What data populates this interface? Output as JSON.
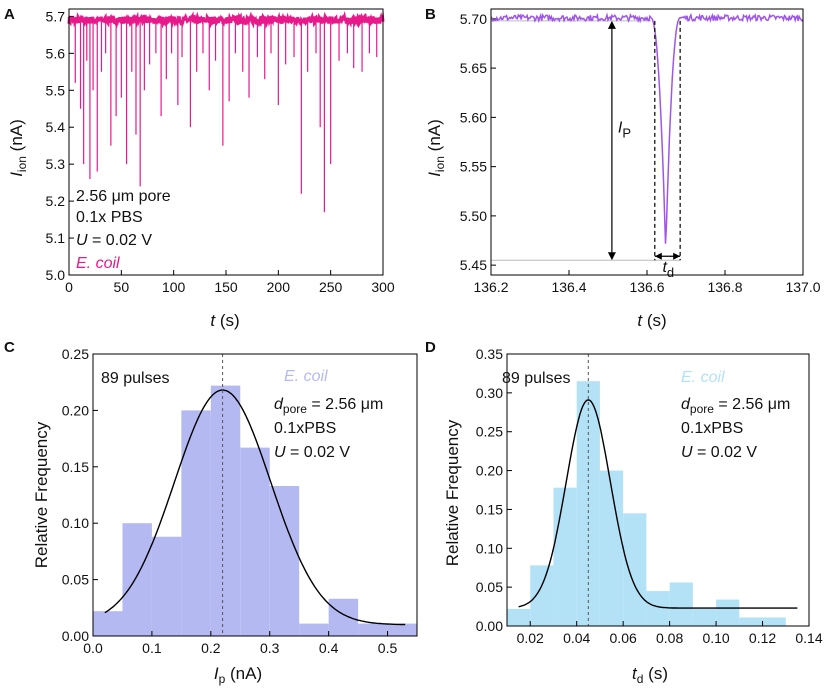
{
  "chart_data": [
    {
      "panel": "A",
      "type": "line",
      "title": "",
      "xlabel": "t (s)",
      "ylabel": "I_ion (nA)",
      "xlim": [
        0,
        300
      ],
      "ylim": [
        5.0,
        5.72
      ],
      "xticks": [
        0,
        50,
        100,
        150,
        200,
        250,
        300
      ],
      "yticks": [
        5.0,
        5.1,
        5.2,
        5.3,
        5.4,
        5.5,
        5.6,
        5.7
      ],
      "xtick_labels": [
        "0",
        "50",
        "100",
        "150",
        "200",
        "250",
        "300"
      ],
      "ytick_labels": [
        "5.0",
        "5.1",
        "5.2",
        "5.3",
        "5.4",
        "5.5",
        "5.6",
        "5.7"
      ],
      "baseline": 5.69,
      "color": "#e8198b",
      "spikes": [
        {
          "t": 6,
          "min": 5.52
        },
        {
          "t": 11,
          "min": 5.45
        },
        {
          "t": 14,
          "min": 5.3
        },
        {
          "t": 17,
          "min": 5.58
        },
        {
          "t": 20,
          "min": 5.26
        },
        {
          "t": 23,
          "min": 5.5
        },
        {
          "t": 27,
          "min": 5.28
        },
        {
          "t": 31,
          "min": 5.55
        },
        {
          "t": 35,
          "min": 5.6
        },
        {
          "t": 40,
          "min": 5.35
        },
        {
          "t": 45,
          "min": 5.43
        },
        {
          "t": 50,
          "min": 5.48
        },
        {
          "t": 55,
          "min": 5.3
        },
        {
          "t": 60,
          "min": 5.55
        },
        {
          "t": 64,
          "min": 5.38
        },
        {
          "t": 68,
          "min": 5.24
        },
        {
          "t": 72,
          "min": 5.5
        },
        {
          "t": 77,
          "min": 5.57
        },
        {
          "t": 83,
          "min": 5.6
        },
        {
          "t": 88,
          "min": 5.43
        },
        {
          "t": 93,
          "min": 5.53
        },
        {
          "t": 98,
          "min": 5.6
        },
        {
          "t": 104,
          "min": 5.46
        },
        {
          "t": 108,
          "min": 5.59
        },
        {
          "t": 116,
          "min": 5.4
        },
        {
          "t": 122,
          "min": 5.55
        },
        {
          "t": 128,
          "min": 5.6
        },
        {
          "t": 134,
          "min": 5.5
        },
        {
          "t": 140,
          "min": 5.58
        },
        {
          "t": 147,
          "min": 5.35
        },
        {
          "t": 153,
          "min": 5.47
        },
        {
          "t": 159,
          "min": 5.6
        },
        {
          "t": 166,
          "min": 5.55
        },
        {
          "t": 172,
          "min": 5.48
        },
        {
          "t": 180,
          "min": 5.59
        },
        {
          "t": 187,
          "min": 5.53
        },
        {
          "t": 193,
          "min": 5.6
        },
        {
          "t": 200,
          "min": 5.46
        },
        {
          "t": 207,
          "min": 5.57
        },
        {
          "t": 215,
          "min": 5.59
        },
        {
          "t": 222,
          "min": 5.22
        },
        {
          "t": 228,
          "min": 5.55
        },
        {
          "t": 236,
          "min": 5.6
        },
        {
          "t": 240,
          "min": 5.4
        },
        {
          "t": 244,
          "min": 5.17
        },
        {
          "t": 250,
          "min": 5.3
        },
        {
          "t": 258,
          "min": 5.58
        },
        {
          "t": 266,
          "min": 5.6
        },
        {
          "t": 272,
          "min": 5.56
        },
        {
          "t": 280,
          "min": 5.55
        },
        {
          "t": 287,
          "min": 5.6
        },
        {
          "t": 294,
          "min": 5.59
        }
      ]
    },
    {
      "panel": "B",
      "type": "line",
      "title": "",
      "xlabel": "t (s)",
      "ylabel": "I_ion (nA)",
      "xlim": [
        136.2,
        137.0
      ],
      "ylim": [
        5.44,
        5.71
      ],
      "xticks": [
        136.2,
        136.4,
        136.6,
        136.8,
        137.0
      ],
      "yticks": [
        5.45,
        5.5,
        5.55,
        5.6,
        5.65,
        5.7
      ],
      "xtick_labels": [
        "136.2",
        "136.4",
        "136.6",
        "136.8",
        "137.0"
      ],
      "ytick_labels": [
        "5.45",
        "5.50",
        "5.55",
        "5.60",
        "5.65",
        "5.70"
      ],
      "baseline": 5.701,
      "color": "#9f55e8",
      "pulse": {
        "t_start": 136.61,
        "t_min": 136.648,
        "t_end": 136.685,
        "min": 5.465
      },
      "levels": {
        "top": 5.698,
        "bottom": 5.455
      },
      "marker_Ip_t": 136.51,
      "dashes_t": [
        136.62,
        136.685
      ],
      "annotations": {
        "Ip": "I",
        "Ip_sub": "P",
        "td": "t",
        "td_sub": "d"
      }
    },
    {
      "panel": "C",
      "type": "bar",
      "title": "",
      "xlabel": "I_p (nA)",
      "ylabel": "Relative Frequency",
      "xlim": [
        0.0,
        0.55
      ],
      "ylim": [
        0.0,
        0.25
      ],
      "xticks": [
        0.0,
        0.1,
        0.2,
        0.3,
        0.4,
        0.5
      ],
      "yticks": [
        0.0,
        0.05,
        0.1,
        0.15,
        0.2,
        0.25
      ],
      "xtick_labels": [
        "0.0",
        "0.1",
        "0.2",
        "0.3",
        "0.4",
        "0.5"
      ],
      "ytick_labels": [
        "0.00",
        "0.05",
        "0.10",
        "0.15",
        "0.20",
        "0.25"
      ],
      "bin_width": 0.05,
      "bin_starts": [
        0.0,
        0.05,
        0.1,
        0.15,
        0.2,
        0.25,
        0.3,
        0.35,
        0.4,
        0.45,
        0.5
      ],
      "values": [
        0.022,
        0.1,
        0.088,
        0.2,
        0.222,
        0.167,
        0.133,
        0.011,
        0.033,
        0.011,
        0.011
      ],
      "bar_color": "#b4b9f2",
      "gauss": {
        "mu": 0.22,
        "sigma": 0.082,
        "amp": 0.208,
        "y0": 0.01,
        "x_from": 0.02,
        "x_to": 0.53
      },
      "mean_line": 0.22,
      "annotations": {
        "count": "89 pulses",
        "species": "E. coil",
        "species_color": "#b4b9f2",
        "pore_prefix": "d",
        "pore_sub": "pore",
        "pore_value": " = 2.56 μm",
        "buffer": "0.1xPBS",
        "voltage_var": "U",
        "voltage_value": " = 0.02 V",
        "xlabel_var": "I",
        "xlabel_sub": "p",
        "xlabel_unit": " (nA)"
      }
    },
    {
      "panel": "D",
      "type": "bar",
      "title": "",
      "xlabel": "t_d (s)",
      "ylabel": "Relative Frequency",
      "xlim": [
        0.01,
        0.14
      ],
      "ylim": [
        0.0,
        0.35
      ],
      "xticks": [
        0.02,
        0.04,
        0.06,
        0.08,
        0.1,
        0.12,
        0.14
      ],
      "yticks": [
        0.0,
        0.05,
        0.1,
        0.15,
        0.2,
        0.25,
        0.3,
        0.35
      ],
      "xtick_labels": [
        "0.02",
        "0.04",
        "0.06",
        "0.08",
        "0.10",
        "0.12",
        "0.14"
      ],
      "ytick_labels": [
        "0.00",
        "0.05",
        "0.10",
        "0.15",
        "0.20",
        "0.25",
        "0.30",
        "0.35"
      ],
      "bin_width": 0.01,
      "bin_starts": [
        0.01,
        0.02,
        0.03,
        0.04,
        0.05,
        0.06,
        0.07,
        0.08,
        0.09,
        0.1,
        0.11,
        0.12
      ],
      "values": [
        0.022,
        0.078,
        0.178,
        0.315,
        0.2,
        0.145,
        0.045,
        0.056,
        0.022,
        0.034,
        0.011,
        0.011
      ],
      "bar_color": "#b3e2f7",
      "gauss": {
        "mu": 0.045,
        "sigma": 0.0095,
        "amp": 0.268,
        "y0": 0.023,
        "x_from": 0.015,
        "x_to": 0.135
      },
      "mean_line": 0.045,
      "annotations": {
        "count": "89 pulses",
        "species": "E. coil",
        "species_color": "#b3e2f7",
        "pore_prefix": "d",
        "pore_sub": "pore",
        "pore_value": " = 2.56 μm",
        "buffer": "0.1xPBS",
        "voltage_var": "U",
        "voltage_value": " = 0.02 V",
        "xlabel_var": "t",
        "xlabel_sub": "d",
        "xlabel_unit": " (s)"
      }
    }
  ],
  "panelA_text": {
    "letter": "A",
    "pore": "2.56 μm pore",
    "buffer": "0.1x PBS",
    "voltage_var": "U",
    "voltage_value": " = 0.02 V",
    "species": "E. coil",
    "ylabel_var": "I",
    "ylabel_sub": "ion",
    "ylabel_unit": " (nA)",
    "xlabel_var": "t",
    "xlabel_unit": " (s)"
  },
  "panelB_text": {
    "letter": "B",
    "ylabel_var": "I",
    "ylabel_sub": "ion",
    "ylabel_unit": " (nA)",
    "xlabel_var": "t",
    "xlabel_unit": " (s)"
  },
  "panelC_text": {
    "letter": "C"
  },
  "panelD_text": {
    "letter": "D"
  }
}
